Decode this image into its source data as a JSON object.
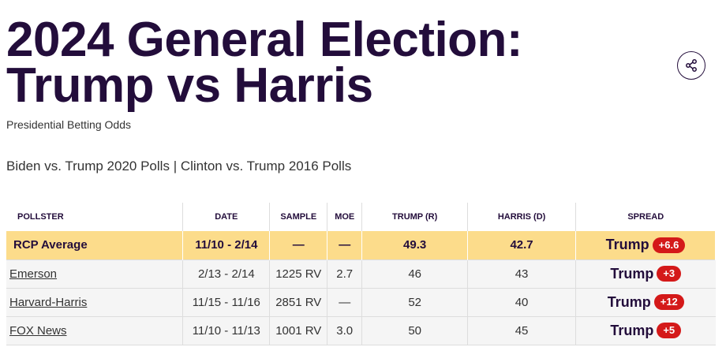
{
  "page": {
    "title_line1": "2024 General Election:",
    "title_line2": "Trump vs Harris",
    "subtitle": "Presidential Betting Odds",
    "related_link1": "Biden vs. Trump 2020 Polls",
    "related_separator": "|",
    "related_link2": "Clinton vs. Trump 2016 Polls",
    "share_icon": "share-icon"
  },
  "table": {
    "headers": [
      "POLLSTER",
      "DATE",
      "SAMPLE",
      "MOE",
      "TRUMP (R)",
      "HARRIS (D)",
      "SPREAD"
    ],
    "average": {
      "pollster": "RCP Average",
      "date": "11/10 - 2/14",
      "sample": "—",
      "moe": "—",
      "trump": "49.3",
      "harris": "42.7",
      "spread_name": "Trump",
      "spread_value": "+6.6"
    },
    "rows": [
      {
        "pollster": "Emerson",
        "date": "2/13 - 2/14",
        "sample": "1225 RV",
        "moe": "2.7",
        "trump": "46",
        "harris": "43",
        "spread_name": "Trump",
        "spread_value": "+3"
      },
      {
        "pollster": "Harvard-Harris",
        "date": "11/15 - 11/16",
        "sample": "2851 RV",
        "moe": "—",
        "trump": "52",
        "harris": "40",
        "spread_name": "Trump",
        "spread_value": "+12"
      },
      {
        "pollster": "FOX News",
        "date": "11/10 - 11/13",
        "sample": "1001 RV",
        "moe": "3.0",
        "trump": "50",
        "harris": "45",
        "spread_name": "Trump",
        "spread_value": "+5"
      }
    ]
  },
  "colors": {
    "title": "#230d3b",
    "average_row": "#fcdc8b",
    "spread_badge": "#d41919",
    "row_bg": "#f5f5f5"
  }
}
